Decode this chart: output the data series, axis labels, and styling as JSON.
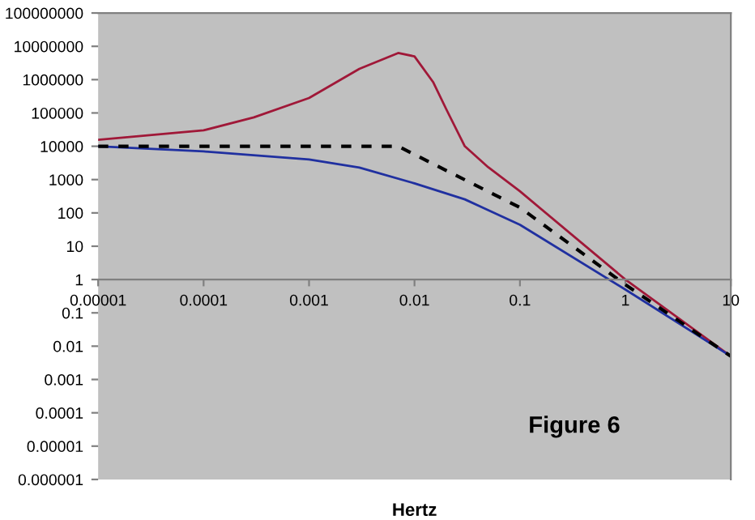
{
  "chart_data": {
    "type": "line",
    "xlabel": "Hertz",
    "annotations": [
      "Figure 6"
    ],
    "log": "xy",
    "grid": false,
    "legend": false,
    "marker": "none",
    "xlim": [
      1e-05,
      10
    ],
    "ylim": [
      1e-06,
      100000000
    ],
    "xticks": [
      {
        "value": 1e-05,
        "label": "0.00001"
      },
      {
        "value": 0.0001,
        "label": "0.0001"
      },
      {
        "value": 0.001,
        "label": "0.001"
      },
      {
        "value": 0.01,
        "label": "0.01"
      },
      {
        "value": 0.1,
        "label": "0.1"
      },
      1,
      10
    ],
    "yticks": [
      {
        "value": 1e-06,
        "label": "0.000001"
      },
      {
        "value": 1e-05,
        "label": "0.00001"
      },
      {
        "value": 0.0001,
        "label": "0.0001"
      },
      {
        "value": 0.001,
        "label": "0.001"
      },
      {
        "value": 0.01,
        "label": "0.01"
      },
      {
        "value": 0.1,
        "label": "0.1"
      },
      1,
      10,
      100,
      1000,
      10000,
      100000,
      1000000,
      10000000,
      100000000
    ],
    "series": [
      {
        "color": "#a01838",
        "line_style": "solid",
        "x": [
          1e-05,
          0.0001,
          0.0003,
          0.001,
          0.003,
          0.007,
          0.01,
          0.015,
          0.02,
          0.03,
          0.05,
          0.1,
          1,
          10
        ],
        "values": [
          15600,
          30000,
          74000,
          280000,
          2100000,
          6300000,
          5000000,
          850000,
          130000,
          10000,
          2350,
          445,
          1,
          0.005
        ]
      },
      {
        "color": "#2030a0",
        "line_style": "solid",
        "x": [
          1e-05,
          0.0001,
          0.001,
          0.003,
          0.01,
          0.03,
          0.1,
          1,
          10
        ],
        "values": [
          10000,
          7000,
          4000,
          2300,
          770,
          255,
          44,
          0.5,
          0.005
        ]
      },
      {
        "color": "#000000",
        "line_style": "dashed",
        "x": [
          1e-05,
          0.007,
          0.1,
          1,
          10
        ],
        "values": [
          10000,
          10000,
          145,
          0.7,
          0.005
        ]
      }
    ]
  }
}
